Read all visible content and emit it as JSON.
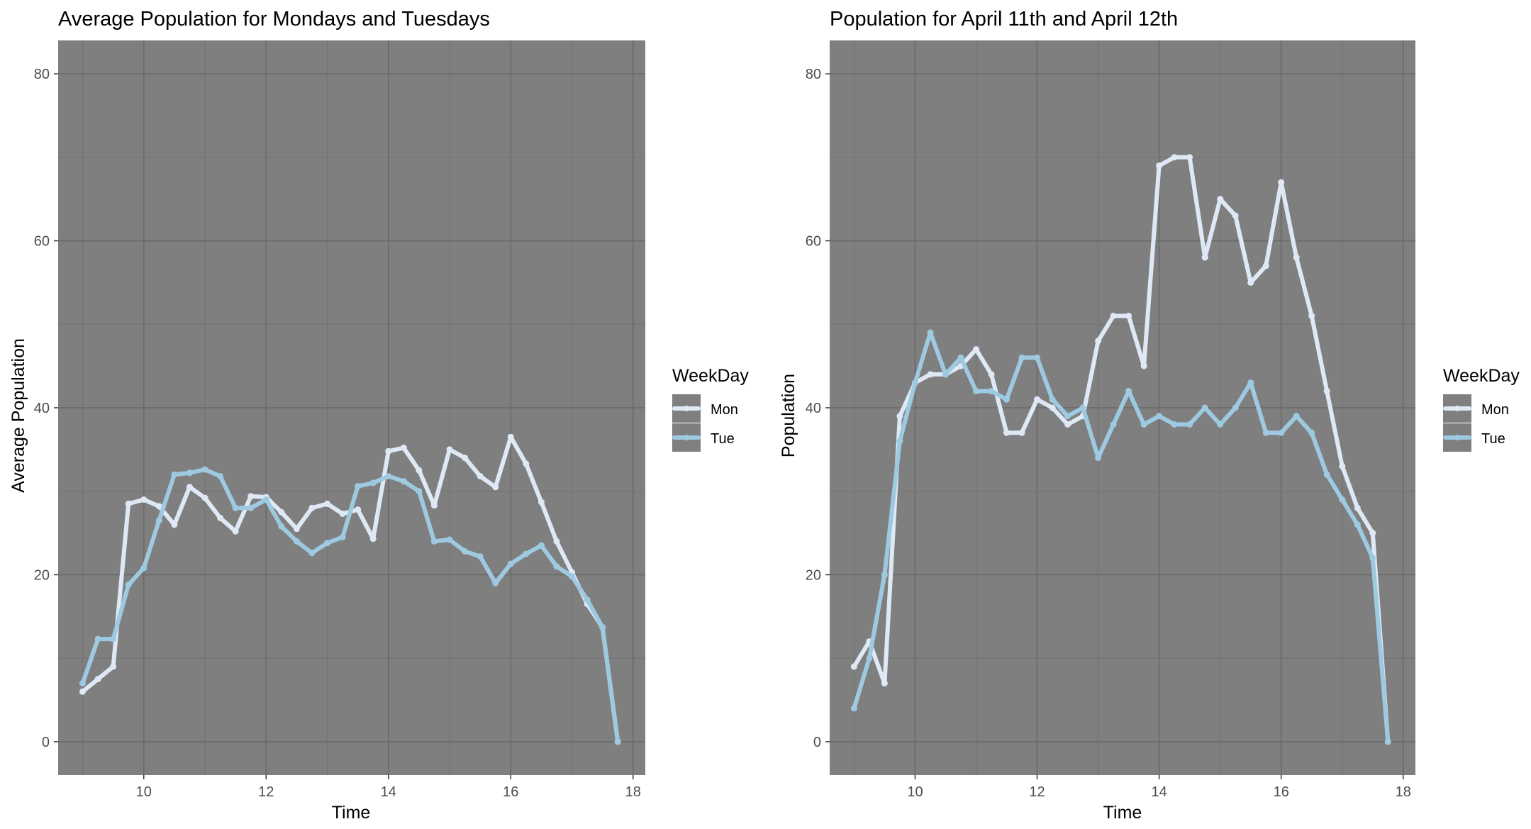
{
  "colors": {
    "panel": "#7f7f7f",
    "grid_major": "#696969",
    "grid_minor": "#747474",
    "tick_text": "#4d4d4d",
    "text": "#000000",
    "mon": "#dfe9f5",
    "tue": "#9ecae1"
  },
  "chart_data": [
    {
      "type": "line",
      "title": "Average Population for Mondays and Tuesdays",
      "xlabel": "Time",
      "ylabel": "Average Population",
      "xlim": [
        8.6,
        18.2
      ],
      "ylim": [
        -4,
        84
      ],
      "xticks": [
        "10",
        "12",
        "14",
        "16",
        "18"
      ],
      "yticks": [
        "0",
        "20",
        "40",
        "60",
        "80"
      ],
      "grid": true,
      "legend": {
        "title": "WeekDay",
        "placement": "right"
      },
      "series": [
        {
          "name": "Mon",
          "color": "#dfe9f5",
          "x": [
            9,
            9.25,
            9.5,
            9.75,
            10,
            10.25,
            10.5,
            10.75,
            11,
            11.25,
            11.5,
            11.75,
            12,
            12.25,
            12.5,
            12.75,
            13,
            13.25,
            13.5,
            13.75,
            14,
            14.25,
            14.5,
            14.75,
            15,
            15.25,
            15.5,
            15.75,
            16,
            16.25,
            16.5,
            16.75,
            17,
            17.25,
            17.5,
            17.75
          ],
          "y": [
            6,
            7.5,
            9,
            28.5,
            29,
            28.2,
            26,
            30.5,
            29.2,
            26.8,
            25.2,
            29.4,
            29.3,
            27.5,
            25.5,
            28,
            28.5,
            27.3,
            27.8,
            24.3,
            34.8,
            35.2,
            32.5,
            28.3,
            35,
            34,
            31.8,
            30.5,
            36.5,
            33.3,
            28.7,
            24,
            20.3,
            16.5,
            13.7,
            0
          ]
        },
        {
          "name": "Tue",
          "color": "#9ecae1",
          "x": [
            9,
            9.25,
            9.5,
            9.75,
            10,
            10.25,
            10.5,
            10.75,
            11,
            11.25,
            11.5,
            11.75,
            12,
            12.25,
            12.5,
            12.75,
            13,
            13.25,
            13.5,
            13.75,
            14,
            14.25,
            14.5,
            14.75,
            15,
            15.25,
            15.5,
            15.75,
            16,
            16.25,
            16.5,
            16.75,
            17,
            17.25,
            17.5,
            17.75
          ],
          "y": [
            7,
            12.3,
            12.3,
            18.8,
            20.8,
            26.5,
            32,
            32.2,
            32.6,
            31.8,
            28,
            28,
            29,
            25.8,
            24,
            22.6,
            23.8,
            24.5,
            30.6,
            31,
            31.8,
            31.2,
            30,
            24,
            24.2,
            22.8,
            22.2,
            19,
            21.3,
            22.5,
            23.5,
            21,
            19.8,
            17,
            13.7,
            0
          ]
        }
      ]
    },
    {
      "type": "line",
      "title": "Population for April 11th and April 12th",
      "xlabel": "Time",
      "ylabel": "Population",
      "xlim": [
        8.6,
        18.2
      ],
      "ylim": [
        -4,
        84
      ],
      "xticks": [
        "10",
        "12",
        "14",
        "16",
        "18"
      ],
      "yticks": [
        "0",
        "20",
        "40",
        "60",
        "80"
      ],
      "grid": true,
      "legend": {
        "title": "WeekDay",
        "placement": "right"
      },
      "series": [
        {
          "name": "Mon",
          "color": "#dfe9f5",
          "x": [
            9,
            9.25,
            9.5,
            9.75,
            10,
            10.25,
            10.5,
            10.75,
            11,
            11.25,
            11.5,
            11.75,
            12,
            12.25,
            12.5,
            12.75,
            13,
            13.25,
            13.5,
            13.75,
            14,
            14.25,
            14.5,
            14.75,
            15,
            15.25,
            15.5,
            15.75,
            16,
            16.25,
            16.5,
            16.75,
            17,
            17.25,
            17.5,
            17.75
          ],
          "y": [
            9,
            12,
            7,
            39,
            43,
            44,
            44,
            45,
            47,
            44,
            37,
            37,
            41,
            40,
            38,
            39,
            48,
            51,
            51,
            45,
            69,
            70,
            70,
            58,
            65,
            63,
            55,
            57,
            67,
            58,
            51,
            42,
            33,
            28,
            25,
            0
          ]
        },
        {
          "name": "Tue",
          "color": "#9ecae1",
          "x": [
            9,
            9.25,
            9.5,
            9.75,
            10,
            10.25,
            10.5,
            10.75,
            11,
            11.25,
            11.5,
            11.75,
            12,
            12.25,
            12.5,
            12.75,
            13,
            13.25,
            13.5,
            13.75,
            14,
            14.25,
            14.5,
            14.75,
            15,
            15.25,
            15.5,
            15.75,
            16,
            16.25,
            16.5,
            16.75,
            17,
            17.25,
            17.5,
            17.75
          ],
          "y": [
            4,
            10,
            20,
            36,
            43,
            49,
            44,
            46,
            42,
            42,
            41,
            46,
            46,
            41,
            39,
            40,
            34,
            38,
            42,
            38,
            39,
            38,
            38,
            40,
            38,
            40,
            43,
            37,
            37,
            39,
            37,
            32,
            29,
            26,
            22,
            0
          ]
        }
      ]
    }
  ]
}
